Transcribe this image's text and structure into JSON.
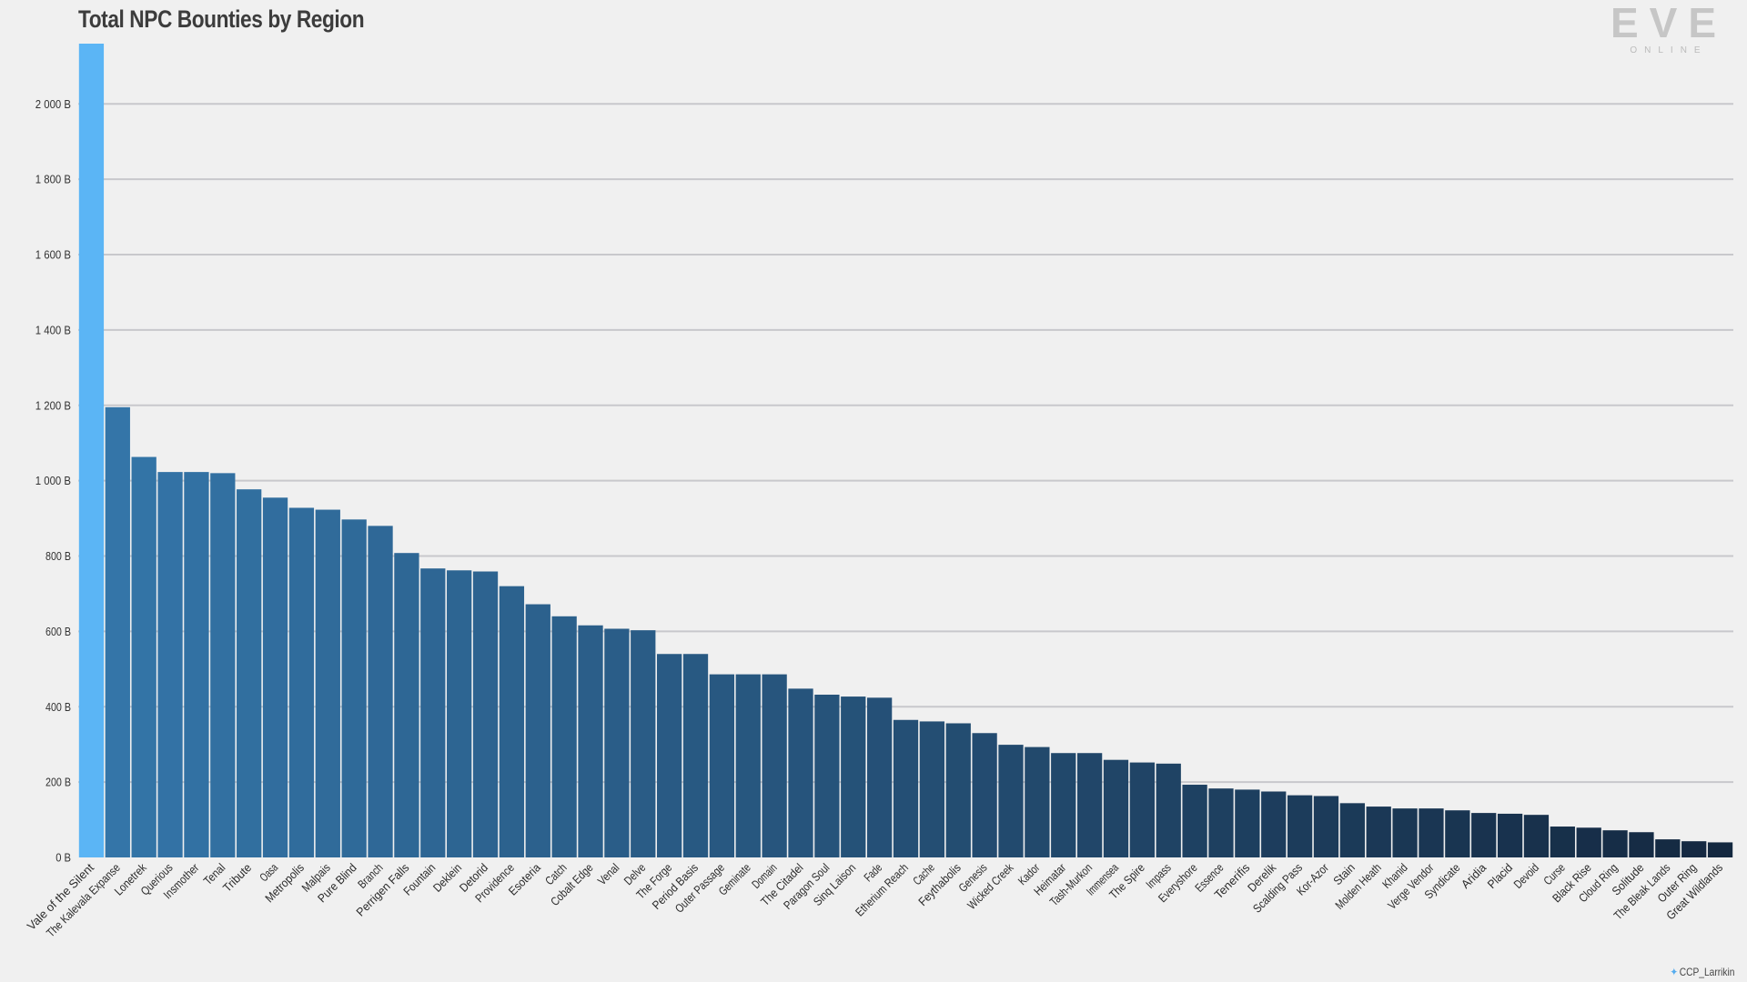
{
  "page": {
    "logo": {
      "main": "EVE",
      "sub": "ONLINE"
    },
    "credit": {
      "icon": "twitter-bird-icon",
      "handle": "CCP_Larrikin"
    }
  },
  "chart_data": {
    "type": "bar",
    "title": "Total NPC Bounties by Region",
    "xlabel": "",
    "ylabel": "",
    "ylim": [
      0,
      2160
    ],
    "yticks": [
      0,
      200,
      400,
      600,
      800,
      1000,
      1200,
      1400,
      1600,
      1800,
      2000
    ],
    "ytick_labels": [
      "0 B",
      "200 B",
      "400 B",
      "600 B",
      "800 B",
      "1 000 B",
      "1 200 B",
      "1 400 B",
      "1 600 B",
      "1 800 B",
      "2 000 B"
    ],
    "grid": true,
    "colors": {
      "highlight": "#5bb5f5",
      "gradient_start": "#3475a8",
      "gradient_end": "#142840",
      "grid": "#c8c8cc",
      "background": "#f0f0f0"
    },
    "categories": [
      "Vale of the Silent",
      "The Kalevala Expanse",
      "Lonetrek",
      "Querious",
      "Insmother",
      "Tenal",
      "Tribute",
      "Oasa",
      "Metropolis",
      "Malpais",
      "Pure Blind",
      "Branch",
      "Perrigen Falls",
      "Fountain",
      "Deklein",
      "Detorid",
      "Providence",
      "Esoteria",
      "Catch",
      "Cobalt Edge",
      "Venal",
      "Delve",
      "The Forge",
      "Period Basis",
      "Outer Passage",
      "Geminate",
      "Domain",
      "The Citadel",
      "Paragon Soul",
      "Sinq Laison",
      "Fade",
      "Etherium Reach",
      "Cache",
      "Feythabolis",
      "Genesis",
      "Wicked Creek",
      "Kador",
      "Heimatar",
      "Tash-Murkon",
      "Immensea",
      "The Spire",
      "Impass",
      "Everyshore",
      "Essence",
      "Tenerifis",
      "Derelik",
      "Scalding Pass",
      "Kor-Azor",
      "Stain",
      "Molden Heath",
      "Khanid",
      "Verge Vendor",
      "Syndicate",
      "Aridia",
      "Placid",
      "Devoid",
      "Curse",
      "Black Rise",
      "Cloud Ring",
      "Solitude",
      "The Bleak Lands",
      "Outer Ring",
      "Great Wildlands"
    ],
    "values": [
      2160,
      1195,
      1063,
      1023,
      1023,
      1020,
      977,
      955,
      928,
      923,
      897,
      880,
      808,
      767,
      762,
      759,
      720,
      672,
      640,
      616,
      607,
      603,
      540,
      540,
      486,
      486,
      486,
      448,
      432,
      427,
      424,
      365,
      361,
      356,
      330,
      299,
      293,
      277,
      277,
      259,
      252,
      249,
      193,
      183,
      180,
      175,
      165,
      163,
      144,
      135,
      130,
      130,
      125,
      118,
      116,
      113,
      82,
      79,
      72,
      67,
      48,
      43,
      40
    ]
  }
}
